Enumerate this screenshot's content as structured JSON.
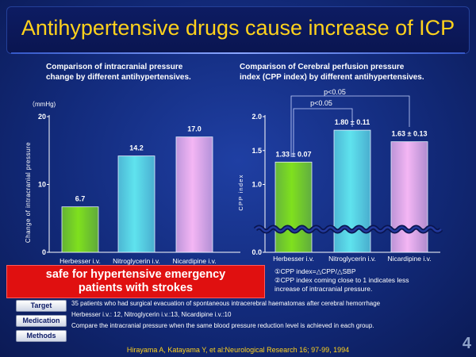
{
  "title": "Antihypertensive drugs cause increase of ICP",
  "left_subtitle": [
    "Comparison of intracranial pressure",
    "change by different antihypertensives."
  ],
  "right_subtitle": [
    "Comparison of Cerebral perfusion pressure",
    "index (CPP index) by different antihypertensives."
  ],
  "chart_data": [
    {
      "type": "bar",
      "unit": "（mmHg)",
      "ylabel": "Change of intracranial pressure",
      "categories": [
        "Herbesser i.v.",
        "Nitroglycerin i.v.",
        "Nicardipine i.v."
      ],
      "values": [
        6.7,
        14.2,
        17.0
      ],
      "data_labels": [
        "6.7",
        "14.2",
        "17.0"
      ],
      "ylim": [
        0,
        20
      ],
      "yticks": [
        "0",
        "10",
        "20"
      ],
      "colors": [
        "#7fe01e",
        "#5fe3ee",
        "#f4b6f4"
      ]
    },
    {
      "type": "bar",
      "ylabel": "CPP index",
      "categories": [
        "Herbesser i.v.",
        "Nitroglycerin i.v.",
        "Nicardipine i.v."
      ],
      "values": [
        1.33,
        1.8,
        1.63
      ],
      "data_labels": [
        "1.33 ± 0.07",
        "1.80 ± 0.11",
        "1.63 ± 0.13"
      ],
      "ylim": [
        0,
        2.0
      ],
      "yticks": [
        "0.0",
        "1.0",
        "1.5",
        "2.0"
      ],
      "axis_break": true,
      "significance": [
        "p<0.05",
        "p<0.05"
      ],
      "colors": [
        "#7fe01e",
        "#5fe3ee",
        "#f4b6f4"
      ]
    }
  ],
  "red_box": [
    "safe for hypertensive emergency",
    "patients with strokes"
  ],
  "notes": [
    "①CPP index=△CPP/△SBP",
    "②CPP index coming close to 1 indicates less",
    "increase of intracranial pressure."
  ],
  "rows": [
    {
      "label": "Target",
      "text": "35 patients who had surgical evacuation of spontaneous intracerebral haematomas after cerebral hemorrhage"
    },
    {
      "label": "Medication",
      "text": "Herbesser i.v.: 12, Nitroglycerin i.v.:13, Nicardipine i.v.:10"
    },
    {
      "label": "Methods",
      "text": "Compare the intracranial pressure when the same blood pressure reduction level is achieved in each group."
    }
  ],
  "citation": "Hirayama A, Katayama Y, et al:Neurological Research 16; 97-99, 1994",
  "page_number": "4"
}
